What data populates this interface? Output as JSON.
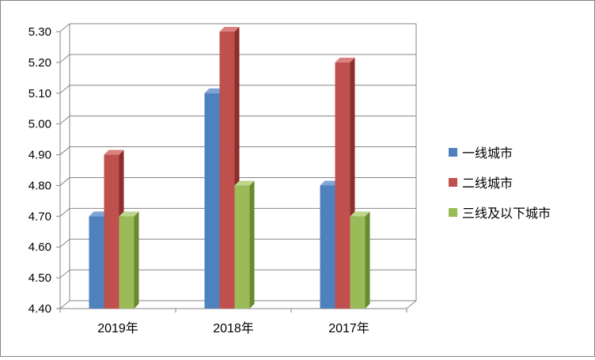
{
  "chart_data": {
    "type": "bar",
    "categories": [
      "2019年",
      "2018年",
      "2017年"
    ],
    "series": [
      {
        "name": "一线城市",
        "values": [
          4.7,
          5.1,
          4.8
        ],
        "color": "#4F81BD",
        "side": "#2E5A8E",
        "top": "#7EA3D6"
      },
      {
        "name": "二线城市",
        "values": [
          4.9,
          5.3,
          5.2
        ],
        "color": "#C0504D",
        "side": "#8C2E2B",
        "top": "#D98280"
      },
      {
        "name": "三线及以下城市",
        "values": [
          4.7,
          4.8,
          4.7
        ],
        "color": "#9BBB59",
        "side": "#6A8A2F",
        "top": "#BDD58C"
      }
    ],
    "yticks": [
      "4.40",
      "4.50",
      "4.60",
      "4.70",
      "4.80",
      "4.90",
      "5.00",
      "5.10",
      "5.20",
      "5.30"
    ],
    "ylim": [
      4.4,
      5.3
    ],
    "legend": "right",
    "grid": true,
    "three_d": true
  }
}
